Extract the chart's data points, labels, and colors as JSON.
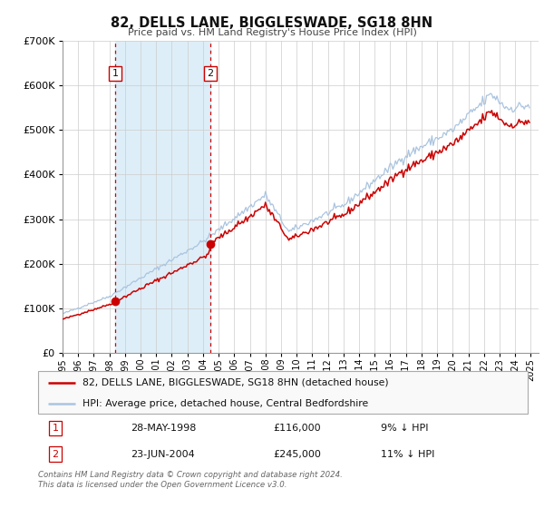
{
  "title": "82, DELLS LANE, BIGGLESWADE, SG18 8HN",
  "subtitle": "Price paid vs. HM Land Registry's House Price Index (HPI)",
  "purchase1_date": "28-MAY-1998",
  "purchase1_price": 116000,
  "purchase1_label": "1",
  "purchase1_pct": "9%",
  "purchase2_date": "23-JUN-2004",
  "purchase2_price": 245000,
  "purchase2_label": "2",
  "purchase2_pct": "11%",
  "legend_property": "82, DELLS LANE, BIGGLESWADE, SG18 8HN (detached house)",
  "legend_hpi": "HPI: Average price, detached house, Central Bedfordshire",
  "footnote1": "Contains HM Land Registry data © Crown copyright and database right 2024.",
  "footnote2": "This data is licensed under the Open Government Licence v3.0.",
  "hpi_color": "#aac4e0",
  "property_color": "#cc0000",
  "background_color": "#ffffff",
  "plot_bg_color": "#ffffff",
  "shaded_region_color": "#ddeef8",
  "grid_color": "#cccccc",
  "ylim_min": 0,
  "ylim_max": 700000,
  "xlim_min": 1995.0,
  "xlim_max": 2025.5,
  "p1_time": 1998.37,
  "p2_time": 2004.46
}
